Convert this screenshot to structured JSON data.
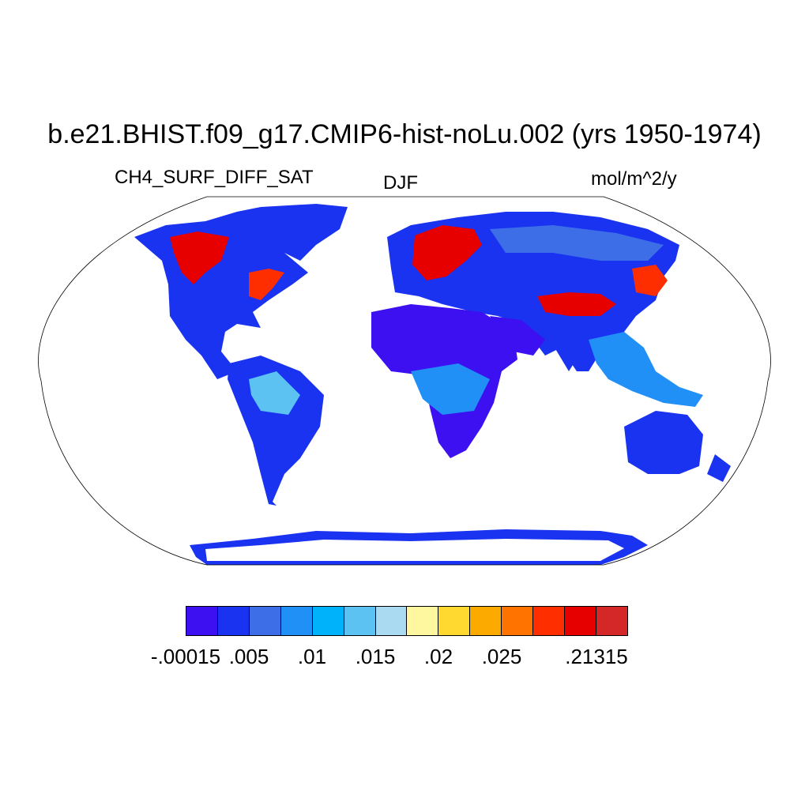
{
  "title": "b.e21.BHIST.f09_g17.CMIP6-hist-noLu.002 (yrs 1950-1974)",
  "left_label": "CH4_SURF_DIFF_SAT",
  "center_label": "DJF",
  "right_label": "mol/m^2/y",
  "colorbar": {
    "colors": [
      "#3c10f0",
      "#1a33f0",
      "#3d6ee8",
      "#2090f7",
      "#00b2fa",
      "#5cc2f2",
      "#aadaf2",
      "#fff7a0",
      "#ffd92f",
      "#fcaa00",
      "#ff7300",
      "#ff2e00",
      "#e60000",
      "#d42828"
    ],
    "labels": [
      "-.00015",
      ".005",
      ".01",
      ".015",
      ".02",
      ".025",
      ".21315"
    ]
  },
  "icons": {
    "map": "world-map-robinson-projection"
  }
}
